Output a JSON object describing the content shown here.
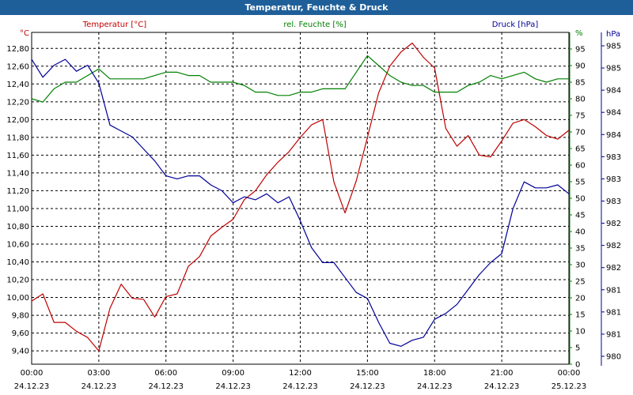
{
  "window": {
    "title": "Temperatur, Feuchte & Druck"
  },
  "colors": {
    "temperature": "#c00000",
    "humidity": "#008000",
    "pressure": "#000099",
    "title_bar": "#1f5f99",
    "grid": "#000000"
  },
  "chart_data": {
    "type": "line",
    "title": "Temperatur, Feuchte & Druck",
    "grid": true,
    "x_ticks": [
      {
        "time": "00:00",
        "date": "24.12.23"
      },
      {
        "time": "03:00",
        "date": "24.12.23"
      },
      {
        "time": "06:00",
        "date": "24.12.23"
      },
      {
        "time": "09:00",
        "date": "24.12.23"
      },
      {
        "time": "12:00",
        "date": "24.12.23"
      },
      {
        "time": "15:00",
        "date": "24.12.23"
      },
      {
        "time": "18:00",
        "date": "24.12.23"
      },
      {
        "time": "21:00",
        "date": "24.12.23"
      },
      {
        "time": "00:00",
        "date": "25.12.23"
      }
    ],
    "axes": {
      "temperature": {
        "label": "Temperatur [°C]",
        "unit": "°C",
        "ylim": [
          9.25,
          12.98
        ],
        "ticks": [
          "12,80",
          "12,60",
          "12,40",
          "12,20",
          "12,00",
          "11,80",
          "11,60",
          "11,40",
          "11,20",
          "11,00",
          "10,80",
          "10,60",
          "10,40",
          "10,20",
          "10,00",
          "9,80",
          "9,60",
          "9,40"
        ]
      },
      "humidity": {
        "label": "rel. Feuchte [%]",
        "unit": "%",
        "ylim": [
          0,
          100
        ],
        "ticks": [
          "95",
          "90",
          "85",
          "80",
          "75",
          "70",
          "65",
          "60",
          "55",
          "50",
          "45",
          "40",
          "35",
          "30",
          "25",
          "20",
          "15",
          "10",
          "5",
          "0"
        ]
      },
      "pressure": {
        "label": "Druck [hPa]",
        "unit": "hPa",
        "ylim": [
          979.9,
          985.45
        ],
        "ticks": [
          "985",
          "985",
          "984",
          "984",
          "984",
          "983",
          "983",
          "983",
          "982",
          "982",
          "982",
          "981",
          "981",
          "981",
          "980"
        ]
      }
    },
    "series": [
      {
        "name": "Temperatur [°C]",
        "axis": "temperature",
        "x": [
          "00:00",
          "00:30",
          "01:00",
          "01:30",
          "02:00",
          "02:30",
          "03:00",
          "03:30",
          "04:00",
          "04:30",
          "05:00",
          "05:30",
          "06:00",
          "06:30",
          "07:00",
          "07:30",
          "08:00",
          "08:30",
          "09:00",
          "09:30",
          "10:00",
          "10:30",
          "11:00",
          "11:30",
          "12:00",
          "12:30",
          "13:00",
          "13:30",
          "14:00",
          "14:30",
          "15:00",
          "15:30",
          "16:00",
          "16:30",
          "17:00",
          "17:30",
          "18:00",
          "18:30",
          "19:00",
          "19:30",
          "20:00",
          "20:30",
          "21:00",
          "21:30",
          "22:00",
          "22:30",
          "23:00",
          "23:30",
          "24:00"
        ],
        "values": [
          9.96,
          10.04,
          9.72,
          9.72,
          9.62,
          9.55,
          9.4,
          9.88,
          10.15,
          9.99,
          9.98,
          9.78,
          10.01,
          10.04,
          10.35,
          10.46,
          10.69,
          10.79,
          10.88,
          11.1,
          11.2,
          11.38,
          11.52,
          11.64,
          11.8,
          11.94,
          12.0,
          11.3,
          10.95,
          11.31,
          11.8,
          12.3,
          12.6,
          12.76,
          12.86,
          12.7,
          12.58,
          11.9,
          11.7,
          11.82,
          11.6,
          11.58,
          11.76,
          11.96,
          12.0,
          11.92,
          11.82,
          11.78,
          11.88
        ]
      },
      {
        "name": "rel. Feuchte [%]",
        "axis": "humidity",
        "x": [
          "00:00",
          "00:30",
          "01:00",
          "01:30",
          "02:00",
          "02:30",
          "03:00",
          "03:30",
          "04:00",
          "04:30",
          "05:00",
          "05:30",
          "06:00",
          "06:30",
          "07:00",
          "07:30",
          "08:00",
          "08:30",
          "09:00",
          "09:30",
          "10:00",
          "10:30",
          "11:00",
          "11:30",
          "12:00",
          "12:30",
          "13:00",
          "13:30",
          "14:00",
          "14:30",
          "15:00",
          "15:30",
          "16:00",
          "16:30",
          "17:00",
          "17:30",
          "18:00",
          "18:30",
          "19:00",
          "19:30",
          "20:00",
          "20:30",
          "21:00",
          "21:30",
          "22:00",
          "22:30",
          "23:00",
          "23:30",
          "24:00"
        ],
        "values": [
          80,
          79,
          83,
          85,
          85,
          87,
          89,
          86,
          86,
          86,
          86,
          87,
          88,
          88,
          87,
          87,
          85,
          85,
          85,
          84,
          82,
          82,
          81,
          81,
          82,
          82,
          83,
          83,
          83,
          88,
          93,
          90,
          87,
          85,
          84,
          84,
          82,
          82,
          82,
          84,
          85,
          87,
          86,
          87,
          88,
          86,
          85,
          86,
          86
        ]
      },
      {
        "name": "Druck [hPa]",
        "axis": "pressure",
        "x": [
          "00:00",
          "00:30",
          "01:00",
          "01:30",
          "02:00",
          "02:30",
          "03:00",
          "03:30",
          "04:00",
          "04:30",
          "05:00",
          "05:30",
          "06:00",
          "06:30",
          "07:00",
          "07:30",
          "08:00",
          "08:30",
          "09:00",
          "09:30",
          "10:00",
          "10:30",
          "11:00",
          "11:30",
          "12:00",
          "12:30",
          "13:00",
          "13:30",
          "14:00",
          "14:30",
          "15:00",
          "15:30",
          "16:00",
          "16:30",
          "17:00",
          "17:30",
          "18:00",
          "18:30",
          "19:00",
          "19:30",
          "20:00",
          "20:30",
          "21:00",
          "21:30",
          "22:00",
          "22:30",
          "23:00",
          "23:30",
          "24:00"
        ],
        "values": [
          985.0,
          984.7,
          984.9,
          985.0,
          984.8,
          984.9,
          984.6,
          983.9,
          983.8,
          983.7,
          983.5,
          983.3,
          983.05,
          983.0,
          983.05,
          983.05,
          982.9,
          982.8,
          982.6,
          982.7,
          982.65,
          982.75,
          982.6,
          982.7,
          982.3,
          981.85,
          981.6,
          981.6,
          981.35,
          981.1,
          981.0,
          980.6,
          980.25,
          980.2,
          980.3,
          980.35,
          980.65,
          980.75,
          980.9,
          981.15,
          981.4,
          981.6,
          981.75,
          982.5,
          982.95,
          982.85,
          982.85,
          982.9,
          982.75
        ]
      }
    ]
  }
}
